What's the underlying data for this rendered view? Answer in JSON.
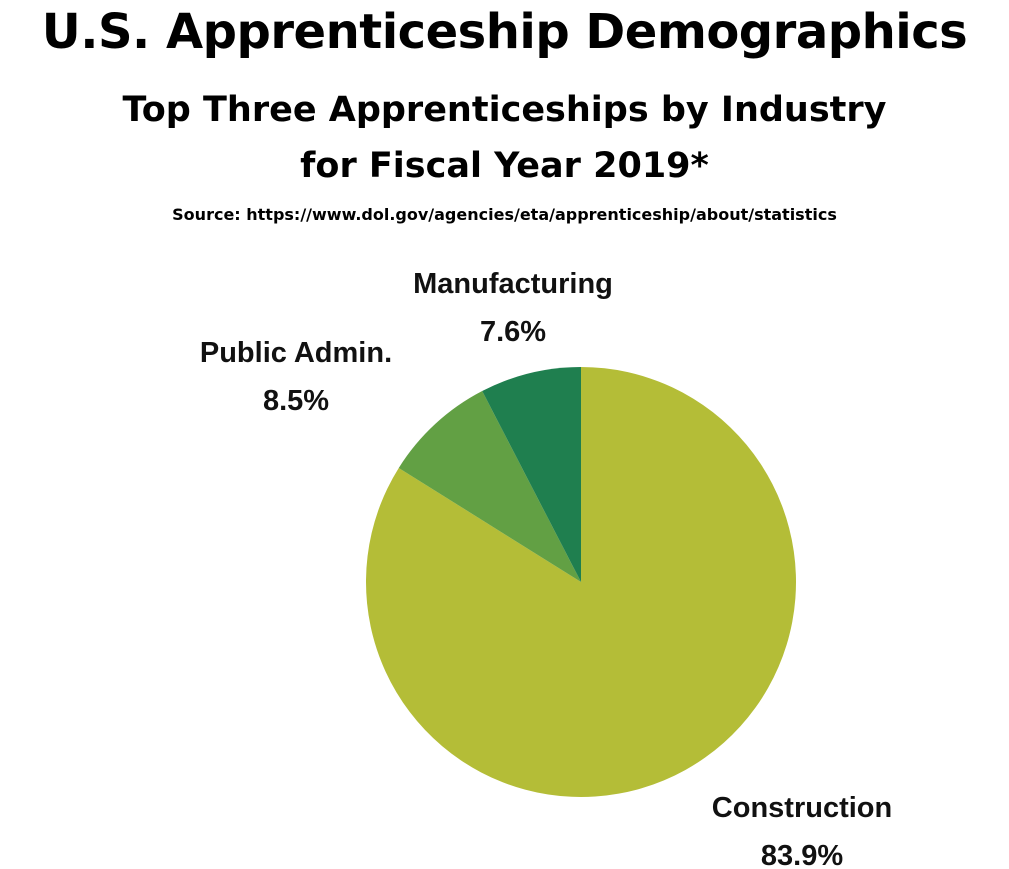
{
  "header": {
    "title": "U.S. Apprenticeship Demographics",
    "subtitle_line1": "Top Three Apprenticeships by Industry",
    "subtitle_line2": "for Fiscal Year 2019*",
    "source": "Source: https://www.dol.gov/agencies/eta/apprenticeship/about/statistics"
  },
  "chart_data": {
    "type": "pie",
    "title": "U.S. Apprenticeship Demographics",
    "subtitle": "Top Three Apprenticeships by Industry for Fiscal Year 2019*",
    "start": "12 o'clock",
    "direction": "clockwise",
    "slices": [
      {
        "label": "Construction",
        "value": 83.9,
        "value_label": "83.9%",
        "color": "#b4bd37"
      },
      {
        "label": "Public Admin.",
        "value": 8.5,
        "value_label": "8.5%",
        "color": "#62a044"
      },
      {
        "label": "Manufacturing",
        "value": 7.6,
        "value_label": "7.6%",
        "color": "#1f7f4f"
      }
    ]
  }
}
